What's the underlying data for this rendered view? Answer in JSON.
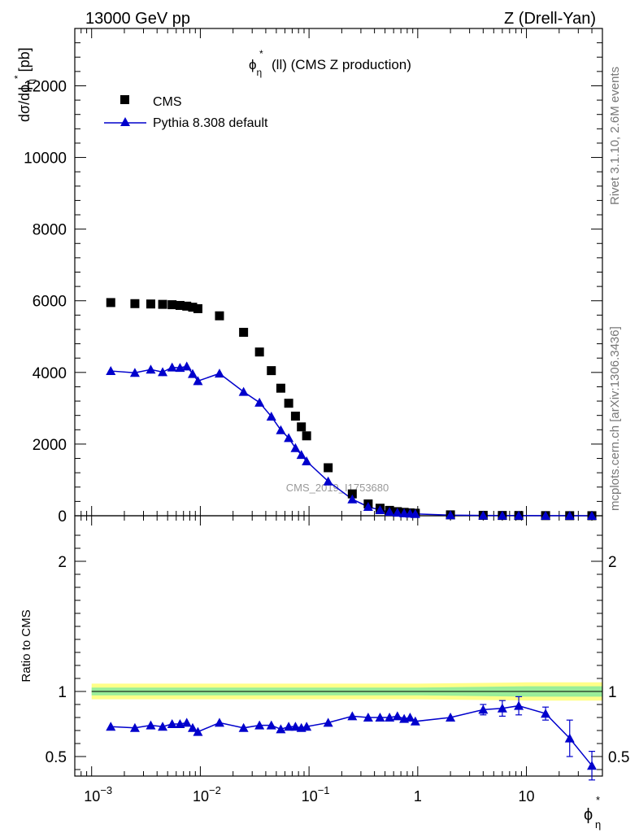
{
  "header": {
    "left": "13000 GeV pp",
    "right": "Z (Drell-Yan)"
  },
  "side_labels": {
    "rivet": "Rivet 3.1.10,  2.6M events",
    "mcplots": "mcplots.cern.ch [arXiv:1306.3436]"
  },
  "plot_title": {
    "phi": "ϕ",
    "sub": "η",
    "sup": "*",
    "rest": "(ll) (CMS Z production)"
  },
  "watermark": "CMS_2019_I1753680",
  "axis_text": {
    "y_top": "dσ/dϕ",
    "y_top_sub": "η",
    "y_top_sup": "*",
    "y_top_unit": "[pb]",
    "y_bottom": "Ratio to CMS",
    "x_phi": "ϕ",
    "x_sub": "η",
    "x_sup": "*"
  },
  "colors": {
    "data": "#000000",
    "mc": "#0000cc",
    "band_outer": "#ffff88",
    "band_inner": "#99ee99"
  },
  "chart_data": [
    {
      "type": "scatter",
      "panel": "main",
      "xscale": "log",
      "xlim": [
        0.0007,
        50
      ],
      "ylim": [
        0,
        13600
      ],
      "y_ticks": [
        0,
        2000,
        4000,
        6000,
        8000,
        10000,
        12000
      ],
      "x_ticks": [
        0.001,
        0.01,
        0.1,
        1,
        10
      ],
      "x_tick_labels": [
        {
          "base": "10",
          "exp": "−3"
        },
        {
          "base": "10",
          "exp": "−2"
        },
        {
          "base": "10",
          "exp": "−1"
        },
        {
          "base": "1",
          "exp": ""
        },
        {
          "base": "10",
          "exp": ""
        }
      ],
      "legend": "top-left",
      "x": [
        0.0015,
        0.0025,
        0.0035,
        0.0045,
        0.0055,
        0.0065,
        0.0075,
        0.0085,
        0.0095,
        0.015,
        0.025,
        0.035,
        0.045,
        0.055,
        0.065,
        0.075,
        0.085,
        0.095,
        0.15,
        0.25,
        0.35,
        0.45,
        0.55,
        0.65,
        0.75,
        0.85,
        0.95,
        2,
        4,
        6,
        8.5,
        15,
        25,
        40
      ],
      "series": [
        {
          "name": "CMS",
          "marker": "square",
          "values": [
            5950,
            5920,
            5910,
            5900,
            5890,
            5870,
            5850,
            5820,
            5780,
            5580,
            5120,
            4570,
            4050,
            3560,
            3140,
            2780,
            2480,
            2230,
            1340,
            610,
            330,
            210,
            150,
            115,
            95,
            80,
            70,
            25,
            12,
            8,
            6,
            4,
            2.5,
            1.5
          ],
          "errors": [
            0,
            0,
            0,
            0,
            0,
            0,
            0,
            0,
            0,
            0,
            0,
            0,
            0,
            0,
            0,
            0,
            0,
            0,
            0,
            0,
            0,
            0,
            0,
            0,
            0,
            0,
            0,
            0,
            0,
            0,
            0,
            0,
            0,
            0
          ]
        },
        {
          "name": "Pythia 8.308 default",
          "marker": "triangle",
          "values": [
            4040,
            3990,
            4080,
            4010,
            4140,
            4130,
            4170,
            3960,
            3760,
            3970,
            3460,
            3160,
            2770,
            2390,
            2170,
            1890,
            1700,
            1520,
            960,
            460,
            250,
            160,
            110,
            88,
            72,
            62,
            52,
            18,
            9,
            6,
            5,
            3,
            1.5,
            0.6
          ],
          "errors": [
            110,
            110,
            110,
            110,
            110,
            110,
            110,
            110,
            110,
            0,
            0,
            0,
            0,
            0,
            0,
            0,
            0,
            0,
            0,
            0,
            0,
            0,
            0,
            0,
            0,
            0,
            0,
            0,
            0,
            0,
            0,
            0,
            0,
            0
          ]
        }
      ]
    },
    {
      "type": "scatter",
      "panel": "ratio",
      "xscale": "log",
      "xlim": [
        0.0007,
        50
      ],
      "ylim": [
        0.35,
        2.35
      ],
      "y_ticks": [
        0.5,
        1,
        2
      ],
      "y_tick_labels": [
        "0.5",
        "1",
        "2"
      ],
      "ylabel": "Ratio to CMS",
      "x": [
        0.0015,
        0.0025,
        0.0035,
        0.0045,
        0.0055,
        0.0065,
        0.0075,
        0.0085,
        0.0095,
        0.015,
        0.025,
        0.035,
        0.045,
        0.055,
        0.065,
        0.075,
        0.085,
        0.095,
        0.15,
        0.25,
        0.35,
        0.45,
        0.55,
        0.65,
        0.75,
        0.85,
        0.95,
        2,
        4,
        6,
        8.5,
        15,
        25,
        40
      ],
      "series": [
        {
          "name": "Pythia 8.308 default",
          "values": [
            0.73,
            0.72,
            0.74,
            0.73,
            0.75,
            0.75,
            0.76,
            0.72,
            0.69,
            0.76,
            0.72,
            0.74,
            0.74,
            0.71,
            0.73,
            0.73,
            0.72,
            0.73,
            0.76,
            0.81,
            0.8,
            0.8,
            0.8,
            0.81,
            0.79,
            0.8,
            0.77,
            0.8,
            0.86,
            0.87,
            0.89,
            0.83,
            0.64,
            0.43
          ],
          "errors": [
            0.02,
            0.02,
            0.02,
            0.02,
            0.02,
            0.02,
            0.02,
            0.02,
            0.02,
            0.01,
            0.01,
            0.01,
            0.01,
            0.01,
            0.01,
            0.01,
            0.01,
            0.01,
            0.01,
            0.01,
            0.01,
            0.01,
            0.01,
            0.02,
            0.02,
            0.02,
            0.02,
            0.01,
            0.04,
            0.06,
            0.07,
            0.05,
            0.14,
            0.11
          ]
        }
      ],
      "band": {
        "x": [
          0.001,
          0.01,
          0.1,
          1,
          10,
          50
        ],
        "outer": [
          0.06,
          0.06,
          0.06,
          0.06,
          0.07,
          0.07
        ],
        "inner": [
          0.03,
          0.03,
          0.03,
          0.03,
          0.04,
          0.04
        ]
      }
    }
  ]
}
